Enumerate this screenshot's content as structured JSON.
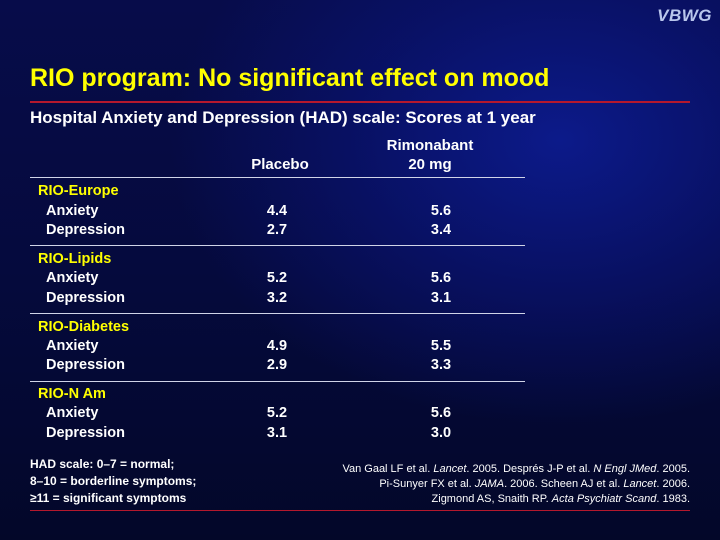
{
  "logo": "VBWG",
  "title": "RIO program: No significant effect on mood",
  "subtitle": "Hospital Anxiety and Depression (HAD) scale: Scores at 1 year",
  "columns": {
    "placebo": "Placebo",
    "rimonabant_line1": "Rimonabant",
    "rimonabant_line2": "20 mg"
  },
  "groups": [
    {
      "name": "RIO-Europe",
      "rows": [
        {
          "label": "Anxiety",
          "placebo": "4.4",
          "rimonabant": "5.6"
        },
        {
          "label": "Depression",
          "placebo": "2.7",
          "rimonabant": "3.4"
        }
      ]
    },
    {
      "name": "RIO-Lipids",
      "rows": [
        {
          "label": "Anxiety",
          "placebo": "5.2",
          "rimonabant": "5.6"
        },
        {
          "label": "Depression",
          "placebo": "3.2",
          "rimonabant": "3.1"
        }
      ]
    },
    {
      "name": "RIO-Diabetes",
      "rows": [
        {
          "label": "Anxiety",
          "placebo": "4.9",
          "rimonabant": "5.5"
        },
        {
          "label": "Depression",
          "placebo": "2.9",
          "rimonabant": "3.3"
        }
      ]
    },
    {
      "name": "RIO-N Am",
      "rows": [
        {
          "label": "Anxiety",
          "placebo": "5.2",
          "rimonabant": "5.6"
        },
        {
          "label": "Depression",
          "placebo": "3.1",
          "rimonabant": "3.0"
        }
      ]
    }
  ],
  "scale_note": [
    "HAD scale: 0–7 = normal;",
    "8–10 = borderline symptoms;",
    "≥11 = significant symptoms"
  ],
  "references": {
    "r1_authors": "Van Gaal LF et al. ",
    "r1_journal": "Lancet",
    "r1_year": ". 2005. ",
    "r2_authors": "Després J-P et al. ",
    "r2_journal": "N Engl JMed",
    "r2_year": ". 2005.",
    "r3_authors": "Pi-Sunyer FX et al. ",
    "r3_journal": "JAMA",
    "r3_year": ". 2006. ",
    "r4_authors": "Scheen AJ et al. ",
    "r4_journal": "Lancet",
    "r4_year": ". 2006.",
    "r5_authors": "Zigmond AS, Snaith RP. ",
    "r5_journal": "Acta Psychiatr Scand",
    "r5_year": ". 1983."
  },
  "colors": {
    "title": "#ffff00",
    "section": "#ffff00",
    "rule": "#b5182d",
    "text": "#ffffff"
  }
}
